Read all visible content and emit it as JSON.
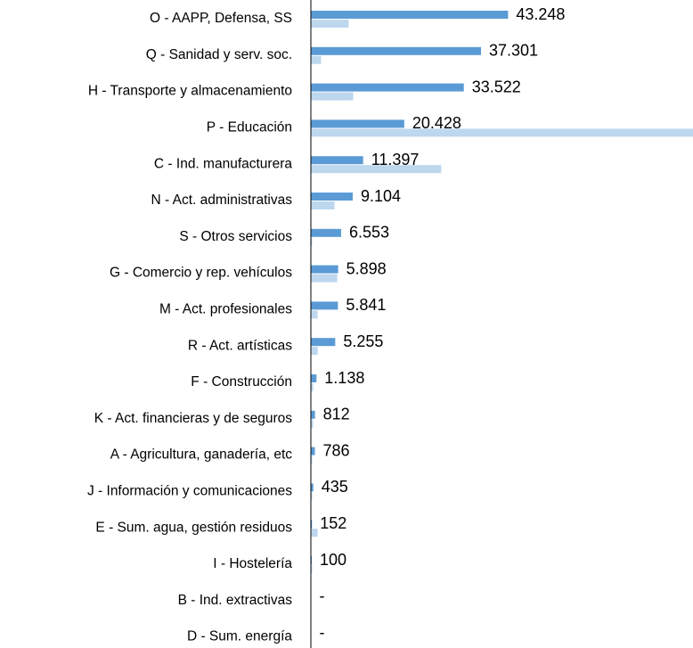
{
  "chart_data": {
    "type": "hbar",
    "categories": [
      "O - AAPP, Defensa, SS",
      "Q - Sanidad y serv. soc.",
      "H - Transporte y almacenamiento",
      "P - Educación",
      "C - Ind. manufacturera",
      "N - Act. administrativas",
      "S - Otros servicios",
      "G - Comercio y rep. vehículos",
      "M - Act. profesionales",
      "R - Act. artísticas",
      "F - Construcción",
      "K - Act. financieras y de seguros",
      "A - Agricultura, ganadería, etc",
      "J - Información y comunicaciones",
      "E - Sum. agua, gestión residuos",
      "I - Hostelería",
      "B - Ind. extractivas",
      "D - Sum. energía"
    ],
    "series": [
      {
        "color": "#5b9bd5",
        "values": [
          43248,
          37301,
          33522,
          20428,
          11397,
          9104,
          6553,
          5898,
          5841,
          5255,
          1138,
          812,
          786,
          435,
          152,
          100,
          0,
          0
        ],
        "value_labels": [
          "43.248",
          "37.301",
          "33.522",
          "20.428",
          "11.397",
          "9.104",
          "6.553",
          "5.898",
          "5.841",
          "5.255",
          "1.138",
          "812",
          "786",
          "435",
          "152",
          "100",
          "-",
          "-"
        ]
      },
      {
        "color": "#bdd7ee",
        "values": [
          8200,
          2150,
          9200,
          83900,
          28550,
          5100,
          200,
          5700,
          1400,
          1400,
          400,
          400,
          200,
          200,
          1400,
          200,
          0,
          0
        ]
      }
    ]
  }
}
